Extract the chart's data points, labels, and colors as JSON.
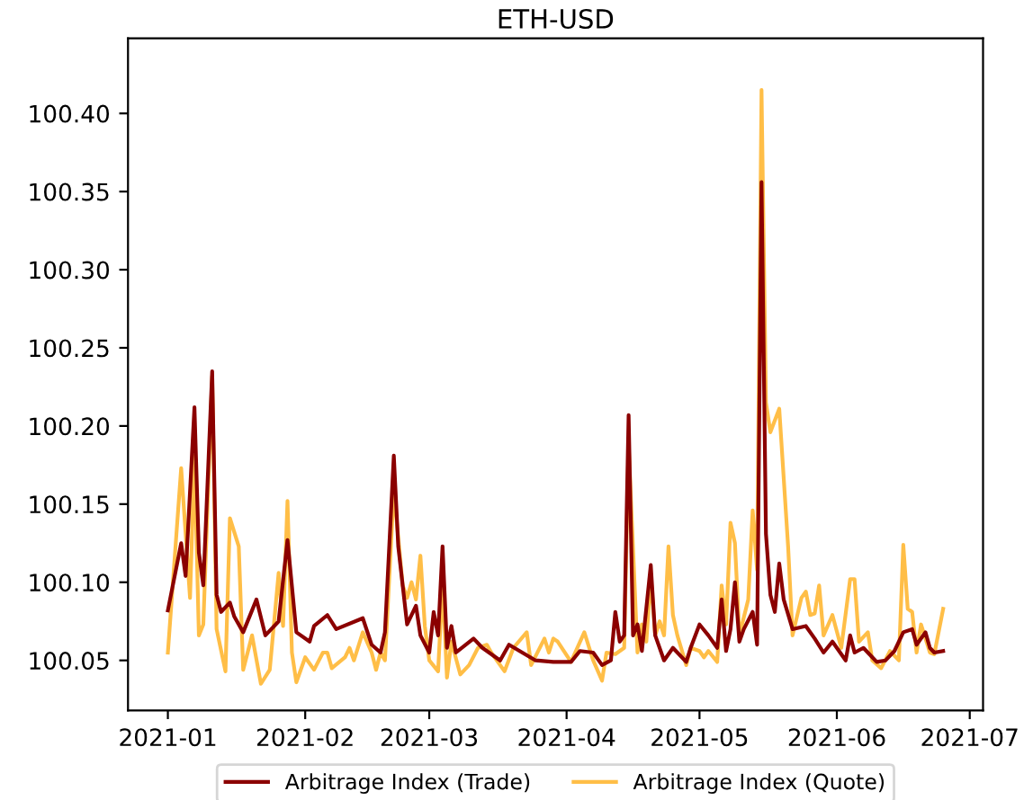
{
  "chart_data": {
    "type": "line",
    "title": "ETH-USD",
    "xlim": [
      "2020-12-23",
      "2021-07-04"
    ],
    "xticks": [
      {
        "value": "2021-01-01",
        "label": "2021-01"
      },
      {
        "value": "2021-02-01",
        "label": "2021-02"
      },
      {
        "value": "2021-03-01",
        "label": "2021-03"
      },
      {
        "value": "2021-04-01",
        "label": "2021-04"
      },
      {
        "value": "2021-05-01",
        "label": "2021-05"
      },
      {
        "value": "2021-06-01",
        "label": "2021-06"
      },
      {
        "value": "2021-07-01",
        "label": "2021-07"
      }
    ],
    "ylim": [
      100.018,
      100.448
    ],
    "yticks": [
      100.05,
      {
        "value": 100.1,
        "label": "100.10"
      },
      100.15,
      {
        "value": 100.2,
        "label": "100.20"
      },
      100.25,
      {
        "value": 100.3,
        "label": "100.30"
      },
      100.35,
      {
        "value": 100.4,
        "label": "100.40"
      }
    ],
    "grid": false,
    "legend": "bottom",
    "marker": "none",
    "line_style": "solid",
    "series": [
      {
        "name": "Arbitrage Index (Trade)",
        "color": "#8b0000",
        "x": [
          "2021-01-01",
          "2021-01-04",
          "2021-01-05",
          "2021-01-07",
          "2021-01-08",
          "2021-01-09",
          "2021-01-11",
          "2021-01-12",
          "2021-01-13",
          "2021-01-15",
          "2021-01-16",
          "2021-01-18",
          "2021-01-21",
          "2021-01-23",
          "2021-01-26",
          "2021-01-28",
          "2021-01-30",
          "2021-02-02",
          "2021-02-03",
          "2021-02-06",
          "2021-02-08",
          "2021-02-14",
          "2021-02-16",
          "2021-02-18",
          "2021-02-19",
          "2021-02-21",
          "2021-02-22",
          "2021-02-24",
          "2021-02-26",
          "2021-02-27",
          "2021-03-01",
          "2021-03-02",
          "2021-03-03",
          "2021-03-04",
          "2021-03-05",
          "2021-03-06",
          "2021-03-07",
          "2021-03-11",
          "2021-03-13",
          "2021-03-17",
          "2021-03-19",
          "2021-03-22",
          "2021-03-25",
          "2021-03-29",
          "2021-04-02",
          "2021-04-04",
          "2021-04-07",
          "2021-04-09",
          "2021-04-11",
          "2021-04-12",
          "2021-04-13",
          "2021-04-14",
          "2021-04-15",
          "2021-04-16",
          "2021-04-17",
          "2021-04-18",
          "2021-04-20",
          "2021-04-21",
          "2021-04-23",
          "2021-04-25",
          "2021-04-28",
          "2021-04-29",
          "2021-05-01",
          "2021-05-03",
          "2021-05-05",
          "2021-05-06",
          "2021-05-07",
          "2021-05-08",
          "2021-05-09",
          "2021-05-10",
          "2021-05-11",
          "2021-05-13",
          "2021-05-14",
          "2021-05-15",
          "2021-05-16",
          "2021-05-17",
          "2021-05-18",
          "2021-05-19",
          "2021-05-20",
          "2021-05-22",
          "2021-05-25",
          "2021-05-27",
          "2021-05-29",
          "2021-05-31",
          "2021-06-03",
          "2021-06-04",
          "2021-06-05",
          "2021-06-07",
          "2021-06-08",
          "2021-06-10",
          "2021-06-12",
          "2021-06-14",
          "2021-06-16",
          "2021-06-18",
          "2021-06-19",
          "2021-06-21",
          "2021-06-22",
          "2021-06-23",
          "2021-06-25"
        ],
        "values": [
          100.082,
          100.125,
          100.104,
          100.212,
          100.119,
          100.098,
          100.235,
          100.092,
          100.081,
          100.087,
          100.078,
          100.068,
          100.089,
          100.066,
          100.075,
          100.127,
          100.068,
          100.062,
          100.072,
          100.079,
          100.07,
          100.077,
          100.06,
          100.055,
          100.068,
          100.181,
          100.123,
          100.073,
          100.085,
          100.066,
          100.055,
          100.081,
          100.066,
          100.123,
          100.058,
          100.072,
          100.055,
          100.064,
          100.058,
          100.05,
          100.06,
          100.055,
          100.05,
          100.049,
          100.049,
          100.056,
          100.055,
          100.047,
          100.05,
          100.081,
          100.062,
          100.066,
          100.207,
          100.066,
          100.073,
          100.056,
          100.111,
          100.066,
          100.05,
          100.058,
          100.049,
          100.058,
          100.073,
          100.066,
          100.058,
          100.089,
          100.056,
          100.07,
          100.1,
          100.062,
          100.07,
          100.081,
          100.06,
          100.356,
          100.131,
          100.092,
          100.081,
          100.112,
          100.089,
          100.07,
          100.072,
          100.064,
          100.055,
          100.062,
          100.05,
          100.066,
          100.055,
          100.058,
          100.055,
          100.049,
          100.05,
          100.056,
          100.068,
          100.07,
          100.06,
          100.068,
          100.058,
          100.055,
          100.056
        ]
      },
      {
        "name": "Arbitrage Index (Quote)",
        "color": "#ffb733",
        "x": [
          "2021-01-01",
          "2021-01-04",
          "2021-01-06",
          "2021-01-07",
          "2021-01-08",
          "2021-01-09",
          "2021-01-11",
          "2021-01-12",
          "2021-01-14",
          "2021-01-15",
          "2021-01-17",
          "2021-01-18",
          "2021-01-20",
          "2021-01-22",
          "2021-01-24",
          "2021-01-26",
          "2021-01-27",
          "2021-01-28",
          "2021-01-29",
          "2021-01-30",
          "2021-02-01",
          "2021-02-03",
          "2021-02-05",
          "2021-02-06",
          "2021-02-07",
          "2021-02-10",
          "2021-02-11",
          "2021-02-12",
          "2021-02-14",
          "2021-02-16",
          "2021-02-17",
          "2021-02-18",
          "2021-02-19",
          "2021-02-21",
          "2021-02-23",
          "2021-02-24",
          "2021-02-25",
          "2021-02-26",
          "2021-02-27",
          "2021-02-28",
          "2021-03-01",
          "2021-03-03",
          "2021-03-04",
          "2021-03-05",
          "2021-03-06",
          "2021-03-08",
          "2021-03-10",
          "2021-03-12",
          "2021-03-14",
          "2021-03-15",
          "2021-03-18",
          "2021-03-20",
          "2021-03-23",
          "2021-03-24",
          "2021-03-27",
          "2021-03-28",
          "2021-03-29",
          "2021-03-30",
          "2021-04-02",
          "2021-04-05",
          "2021-04-07",
          "2021-04-09",
          "2021-04-10",
          "2021-04-12",
          "2021-04-14",
          "2021-04-15",
          "2021-04-17",
          "2021-04-18",
          "2021-04-19",
          "2021-04-20",
          "2021-04-21",
          "2021-04-22",
          "2021-04-23",
          "2021-04-24",
          "2021-04-25",
          "2021-04-26",
          "2021-04-28",
          "2021-04-29",
          "2021-05-01",
          "2021-05-02",
          "2021-05-03",
          "2021-05-05",
          "2021-05-06",
          "2021-05-07",
          "2021-05-08",
          "2021-05-09",
          "2021-05-10",
          "2021-05-12",
          "2021-05-13",
          "2021-05-14",
          "2021-05-15",
          "2021-05-16",
          "2021-05-17",
          "2021-05-19",
          "2021-05-21",
          "2021-05-22",
          "2021-05-24",
          "2021-05-25",
          "2021-05-26",
          "2021-05-27",
          "2021-05-28",
          "2021-05-29",
          "2021-05-31",
          "2021-06-02",
          "2021-06-04",
          "2021-06-05",
          "2021-06-06",
          "2021-06-08",
          "2021-06-09",
          "2021-06-11",
          "2021-06-13",
          "2021-06-15",
          "2021-06-16",
          "2021-06-17",
          "2021-06-18",
          "2021-06-19",
          "2021-06-20",
          "2021-06-22",
          "2021-06-23",
          "2021-06-25"
        ],
        "values": [
          100.055,
          100.173,
          100.09,
          100.181,
          100.066,
          100.073,
          100.232,
          100.07,
          100.043,
          100.141,
          100.123,
          100.044,
          100.066,
          100.035,
          100.044,
          100.106,
          100.072,
          100.152,
          100.055,
          100.036,
          100.052,
          100.044,
          100.055,
          100.055,
          100.045,
          100.052,
          100.058,
          100.05,
          100.068,
          100.055,
          100.044,
          100.055,
          100.05,
          100.159,
          100.098,
          100.09,
          100.1,
          100.089,
          100.117,
          100.072,
          100.05,
          100.043,
          100.1,
          100.039,
          100.062,
          100.041,
          100.047,
          100.058,
          100.06,
          100.055,
          100.043,
          100.058,
          100.068,
          100.047,
          100.064,
          100.055,
          100.064,
          100.062,
          100.049,
          100.068,
          100.05,
          100.037,
          100.055,
          100.054,
          100.058,
          100.188,
          100.055,
          100.073,
          100.062,
          100.104,
          100.066,
          100.075,
          100.066,
          100.123,
          100.079,
          100.066,
          100.047,
          100.058,
          100.056,
          100.052,
          100.056,
          100.049,
          100.098,
          100.073,
          100.138,
          100.125,
          100.066,
          100.089,
          100.146,
          100.108,
          100.415,
          100.215,
          100.196,
          100.211,
          100.123,
          100.066,
          100.09,
          100.094,
          100.079,
          100.08,
          100.098,
          100.066,
          100.079,
          100.058,
          100.102,
          100.102,
          100.062,
          100.068,
          100.05,
          100.045,
          100.056,
          100.05,
          100.124,
          100.083,
          100.081,
          100.055,
          100.073,
          100.055,
          100.054,
          100.083
        ]
      }
    ]
  }
}
